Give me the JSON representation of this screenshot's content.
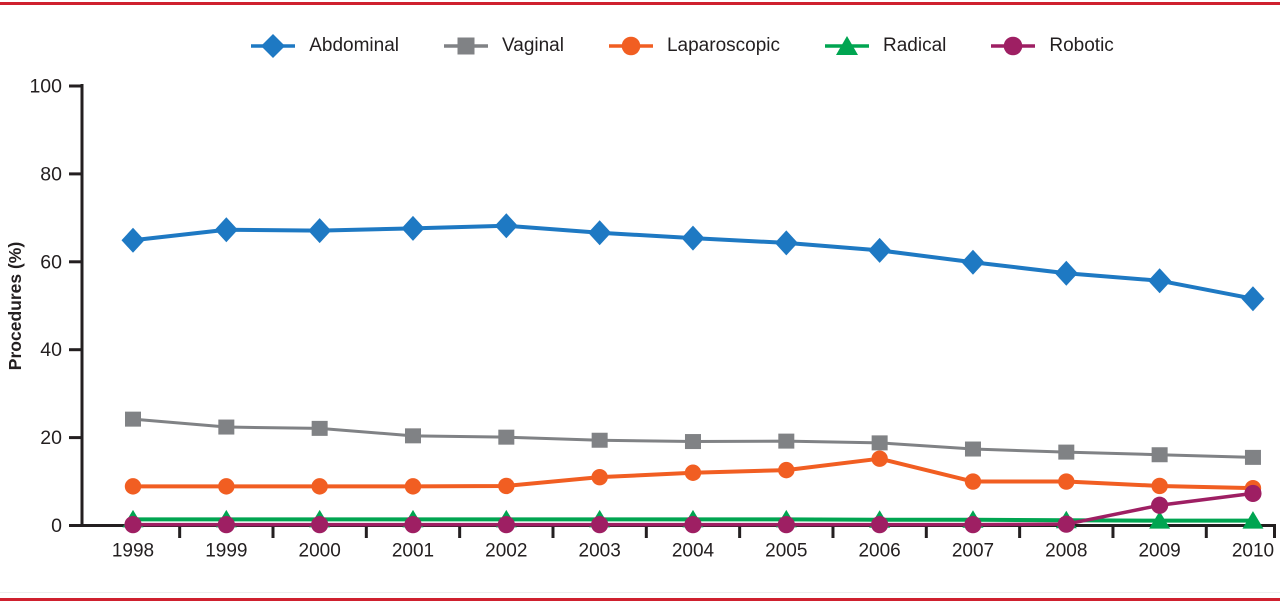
{
  "colors": {
    "border_red": "#cf202e",
    "axis_black": "#231f20",
    "background": "#ffffff",
    "abdominal_blue": "#1e79c3",
    "vaginal_gray": "#808285",
    "laparoscopic_orange": "#f15e22",
    "radical_green": "#00a551",
    "robotic_purple": "#9e1f63"
  },
  "chart_data": {
    "type": "line",
    "title": "",
    "xlabel": "",
    "ylabel": "Procedures (%)",
    "ylim": [
      0,
      100
    ],
    "yticks": [
      0,
      20,
      40,
      60,
      80,
      100
    ],
    "grid": false,
    "legend_position": "top-center",
    "categories": [
      "1998",
      "1999",
      "2000",
      "2001",
      "2002",
      "2003",
      "2004",
      "2005",
      "2006",
      "2007",
      "2008",
      "2009",
      "2010"
    ],
    "series": [
      {
        "name": "Abdominal",
        "marker": "diamond",
        "color": "#1e79c3",
        "values": [
          64.9,
          67.3,
          67.1,
          67.6,
          68.2,
          66.6,
          65.4,
          64.3,
          62.6,
          59.9,
          57.4,
          55.7,
          51.6
        ]
      },
      {
        "name": "Vaginal",
        "marker": "square",
        "color": "#808285",
        "values": [
          24.2,
          22.4,
          22.1,
          20.4,
          20.1,
          19.4,
          19.1,
          19.2,
          18.8,
          17.4,
          16.7,
          16.1,
          15.5
        ]
      },
      {
        "name": "Laparoscopic",
        "marker": "circle",
        "color": "#f15e22",
        "values": [
          8.9,
          8.9,
          8.9,
          8.9,
          9.0,
          11.0,
          12.0,
          12.6,
          15.2,
          10.0,
          10.0,
          9.0,
          8.5
        ]
      },
      {
        "name": "Radical",
        "marker": "triangle",
        "color": "#00a551",
        "values": [
          1.4,
          1.4,
          1.4,
          1.4,
          1.4,
          1.4,
          1.4,
          1.4,
          1.3,
          1.3,
          1.2,
          1.1,
          1.1
        ]
      },
      {
        "name": "Robotic",
        "marker": "circle",
        "color": "#9e1f63",
        "values": [
          0.2,
          0.2,
          0.2,
          0.2,
          0.2,
          0.2,
          0.2,
          0.2,
          0.2,
          0.2,
          0.3,
          4.6,
          7.3
        ]
      }
    ]
  }
}
